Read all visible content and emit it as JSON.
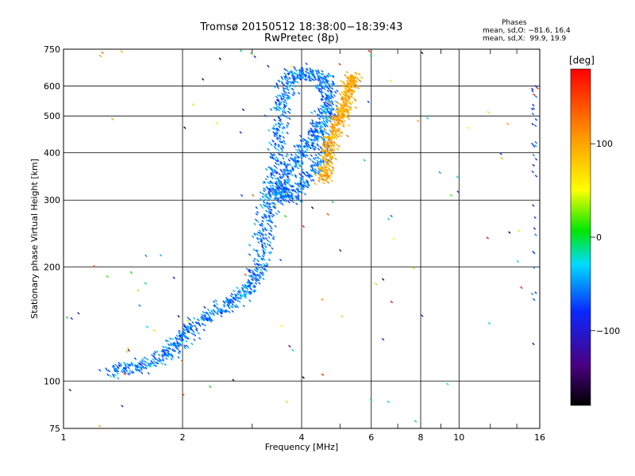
{
  "title_line1": "Tromsø 20150512 18:38:00−18:39:43",
  "title_line2": "RwPretec (8p)",
  "phases": {
    "heading": "Phases",
    "o_mode": "mean, sd,O: −81.6, 16.4",
    "x_mode": "mean, sd,X:  99.9, 19.9"
  },
  "colorbar": {
    "unit": "[deg]",
    "ticks": [
      "100",
      "0",
      "−100"
    ],
    "tick_values": [
      100,
      0,
      -100
    ],
    "range": [
      -180,
      180
    ]
  },
  "chart_data": {
    "type": "scatter",
    "xlabel": "Frequency [MHz]",
    "ylabel": "Stationary phase Virtual Height [km]",
    "x_scale": "log",
    "y_scale": "log",
    "xlim": [
      1,
      16
    ],
    "ylim": [
      75,
      750
    ],
    "grid": true,
    "x_ticks": [
      1,
      2,
      4,
      6,
      8,
      10,
      16
    ],
    "x_tick_labels": [
      "1",
      "2",
      "4",
      "6",
      "8",
      "10",
      "16"
    ],
    "x_minor_ticks": [
      3,
      5,
      7,
      9,
      12,
      14
    ],
    "y_ticks": [
      75,
      100,
      200,
      300,
      400,
      500,
      600,
      750
    ],
    "y_tick_labels": [
      "75",
      "100",
      "200",
      "300",
      "400",
      "500",
      "600",
      "750"
    ],
    "series": [
      {
        "mode": "O",
        "phase_mean": -81.6,
        "phase_sd": 16.4,
        "trace": [
          [
            1.3,
            106
          ],
          [
            1.45,
            108
          ],
          [
            1.6,
            110
          ],
          [
            1.75,
            115
          ],
          [
            1.9,
            122
          ],
          [
            2.0,
            130
          ],
          [
            2.1,
            138
          ],
          [
            2.3,
            148
          ],
          [
            2.5,
            155
          ],
          [
            2.7,
            162
          ],
          [
            2.9,
            172
          ],
          [
            3.05,
            185
          ],
          [
            3.15,
            200
          ],
          [
            3.2,
            230
          ],
          [
            3.25,
            260
          ],
          [
            3.3,
            290
          ],
          [
            3.35,
            320
          ],
          [
            3.45,
            360
          ],
          [
            3.5,
            420
          ],
          [
            3.55,
            480
          ],
          [
            3.6,
            540
          ],
          [
            3.65,
            600
          ],
          [
            3.8,
            640
          ],
          [
            4.1,
            645
          ],
          [
            4.4,
            640
          ],
          [
            4.6,
            610
          ],
          [
            4.7,
            560
          ],
          [
            4.65,
            520
          ],
          [
            4.55,
            490
          ],
          [
            4.4,
            460
          ],
          [
            4.2,
            430
          ],
          [
            4.0,
            400
          ],
          [
            3.8,
            370
          ],
          [
            3.6,
            340
          ],
          [
            3.5,
            315
          ],
          [
            3.55,
            305
          ],
          [
            3.8,
            310
          ],
          [
            4.05,
            330
          ],
          [
            4.3,
            360
          ],
          [
            4.5,
            400
          ],
          [
            4.6,
            450
          ]
        ]
      },
      {
        "mode": "X",
        "phase_mean": 99.9,
        "phase_sd": 19.9,
        "trace": [
          [
            4.5,
            340
          ],
          [
            4.6,
            355
          ],
          [
            4.65,
            380
          ],
          [
            4.7,
            410
          ],
          [
            4.8,
            440
          ],
          [
            4.9,
            470
          ],
          [
            5.0,
            500
          ],
          [
            5.1,
            520
          ],
          [
            5.2,
            550
          ],
          [
            5.3,
            590
          ],
          [
            5.35,
            620
          ],
          [
            5.4,
            640
          ]
        ]
      }
    ]
  }
}
